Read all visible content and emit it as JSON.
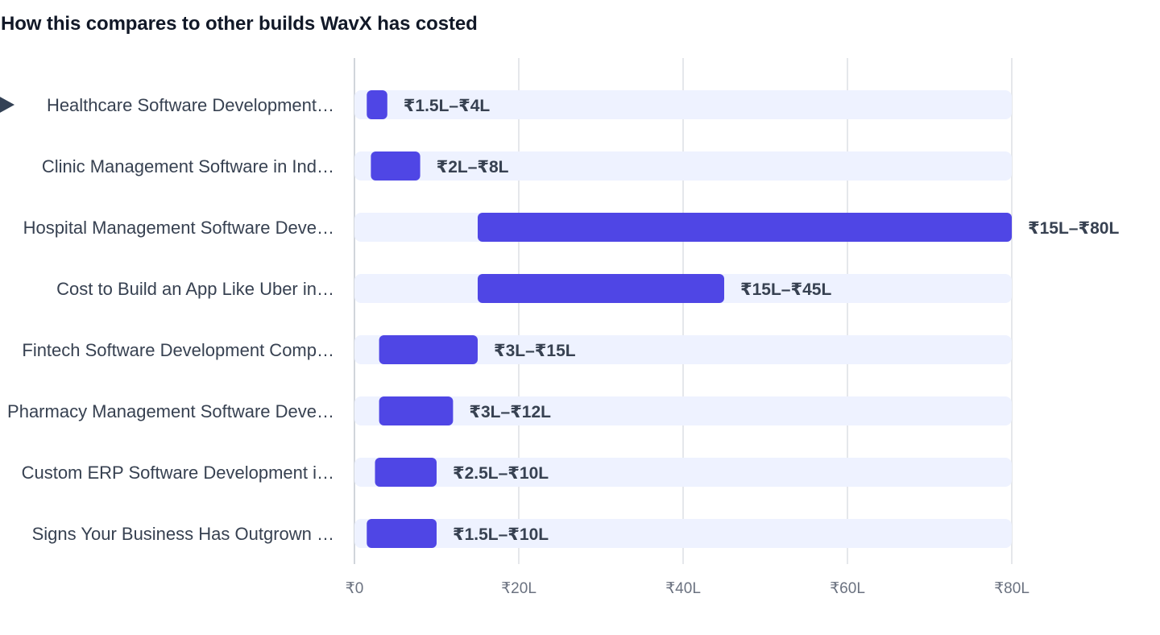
{
  "title": "How this compares to other builds WavX has costed",
  "colors": {
    "bar": "#4f46e5",
    "track": "#eef2ff",
    "grid": "#e5e7eb",
    "label": "#374151",
    "tick": "#6b7280",
    "marker": "#334155"
  },
  "chart_data": {
    "type": "bar",
    "orientation": "horizontal",
    "range_bars": true,
    "title": "How this compares to other builds WavX has costed",
    "unit": "₹ Lakh",
    "xlim": [
      0,
      80
    ],
    "x_ticks": [
      0,
      20,
      40,
      60,
      80
    ],
    "x_tick_labels": [
      "₹0",
      "₹20L",
      "₹40L",
      "₹60L",
      "₹80L"
    ],
    "grid": "vertical",
    "current_item_index": 0,
    "categories": [
      "Healthcare Software Development…",
      "Clinic Management Software in Ind…",
      "Hospital Management Software Deve…",
      "Cost to Build an App Like Uber in…",
      "Fintech Software Development Comp…",
      "Pharmacy Management Software Deve…",
      "Custom ERP Software Development i…",
      "Signs Your Business Has Outgrown …"
    ],
    "ranges": [
      [
        1.5,
        4
      ],
      [
        2,
        8
      ],
      [
        15,
        80
      ],
      [
        15,
        45
      ],
      [
        3,
        15
      ],
      [
        3,
        12
      ],
      [
        2.5,
        10
      ],
      [
        1.5,
        10
      ]
    ],
    "value_labels": [
      "₹1.5L–₹4L",
      "₹2L–₹8L",
      "₹15L–₹80L",
      "₹15L–₹45L",
      "₹3L–₹15L",
      "₹3L–₹12L",
      "₹2.5L–₹10L",
      "₹1.5L–₹10L"
    ]
  }
}
